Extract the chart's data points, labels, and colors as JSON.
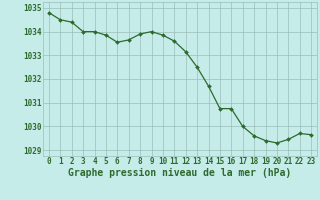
{
  "x": [
    0,
    1,
    2,
    3,
    4,
    5,
    6,
    7,
    8,
    9,
    10,
    11,
    12,
    13,
    14,
    15,
    16,
    17,
    18,
    19,
    20,
    21,
    22,
    23
  ],
  "y": [
    1034.8,
    1034.5,
    1034.4,
    1034.0,
    1034.0,
    1033.85,
    1033.55,
    1033.65,
    1033.9,
    1034.0,
    1033.85,
    1033.6,
    1033.15,
    1032.5,
    1031.7,
    1030.75,
    1030.75,
    1030.0,
    1029.6,
    1029.4,
    1029.3,
    1029.45,
    1029.7,
    1029.65
  ],
  "line_color": "#2d6a2d",
  "marker_color": "#2d6a2d",
  "bg_color": "#c5ece8",
  "grid_color": "#9abfbb",
  "text_color": "#2d6a2d",
  "xlabel": "Graphe pression niveau de la mer (hPa)",
  "ylim": [
    1028.75,
    1035.25
  ],
  "yticks": [
    1029,
    1030,
    1031,
    1032,
    1033,
    1034,
    1035
  ],
  "xticks": [
    0,
    1,
    2,
    3,
    4,
    5,
    6,
    7,
    8,
    9,
    10,
    11,
    12,
    13,
    14,
    15,
    16,
    17,
    18,
    19,
    20,
    21,
    22,
    23
  ],
  "tick_fontsize": 5.5,
  "xlabel_fontsize": 7.0
}
